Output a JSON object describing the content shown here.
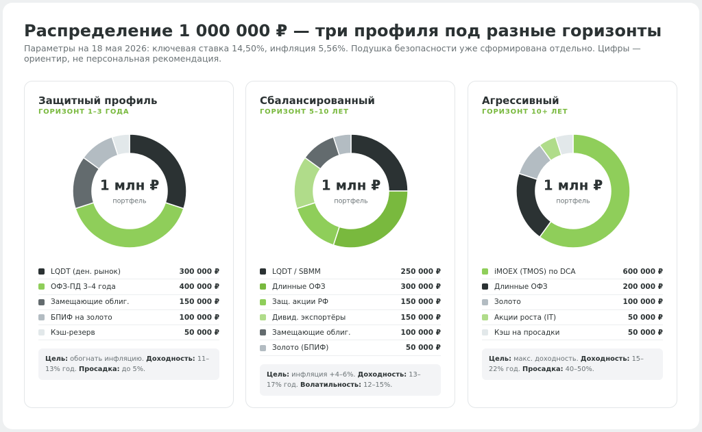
{
  "title": "Распределение 1 000 000 ₽ — три профиля под разные горизонты",
  "subtitle": "Параметры на 18 мая 2026: ключевая ставка 14,50%, инфляция 5,56%. Подушка безопасности уже сформирована отдельно. Цифры — ориентир, не персональная рекомендация.",
  "chart_data": [
    {
      "type": "donut",
      "title": "Защитный профиль",
      "subtitle": "ГОРИЗОНТ 1–3 ГОДА",
      "center_label": "1 млн ₽",
      "center_sublabel": "портфель",
      "categories": [
        "LQDT (ден. рынок)",
        "ОФЗ-ПД 3–4 года",
        "Замещающие облиг.",
        "БПИФ на золото",
        "Кэш-резерв"
      ],
      "values": [
        300000,
        400000,
        150000,
        100000,
        50000
      ],
      "value_labels": [
        "300 000 ₽",
        "400 000 ₽",
        "150 000 ₽",
        "100 000 ₽",
        "50 000 ₽"
      ],
      "colors": [
        "#2b3233",
        "#8fce5a",
        "#636b6e",
        "#b3bcc2",
        "#e2e8ea"
      ],
      "note": [
        {
          "label": "Цель:",
          "text": "обогнать инфляцию."
        },
        {
          "label": "Доходность:",
          "text": "11–13% год."
        },
        {
          "label": "Просадка:",
          "text": "до 5%."
        }
      ]
    },
    {
      "type": "donut",
      "title": "Сбалансированный",
      "subtitle": "ГОРИЗОНТ 5–10 ЛЕТ",
      "center_label": "1 млн ₽",
      "center_sublabel": "портфель",
      "categories": [
        "LQDT / SBMM",
        "Длинные ОФЗ",
        "Защ. акции РФ",
        "Дивид. экспортёры",
        "Замещающие облиг.",
        "Золото (БПИФ)"
      ],
      "values": [
        250000,
        300000,
        150000,
        150000,
        100000,
        50000
      ],
      "value_labels": [
        "250 000 ₽",
        "300 000 ₽",
        "150 000 ₽",
        "150 000 ₽",
        "100 000 ₽",
        "50 000 ₽"
      ],
      "colors": [
        "#2b3233",
        "#79b93e",
        "#8fce5a",
        "#b0dc8a",
        "#636b6e",
        "#b3bcc2"
      ],
      "note": [
        {
          "label": "Цель:",
          "text": "инфляция +4–6%."
        },
        {
          "label": "Доходность:",
          "text": "13–17% год."
        },
        {
          "label": "Волатильность:",
          "text": "12–15%."
        }
      ]
    },
    {
      "type": "donut",
      "title": "Агрессивный",
      "subtitle": "ГОРИЗОНТ 10+ ЛЕТ",
      "center_label": "1 млн ₽",
      "center_sublabel": "портфель",
      "categories": [
        "iMOEX (TMOS) по DCA",
        "Длинные ОФЗ",
        "Золото",
        "Акции роста (IT)",
        "Кэш на просадки"
      ],
      "values": [
        600000,
        200000,
        100000,
        50000,
        50000
      ],
      "value_labels": [
        "600 000 ₽",
        "200 000 ₽",
        "100 000 ₽",
        "50 000 ₽",
        "50 000 ₽"
      ],
      "colors": [
        "#8fce5a",
        "#2b3233",
        "#b3bcc2",
        "#b0dc8a",
        "#e2e8ea"
      ],
      "note": [
        {
          "label": "Цель:",
          "text": "макс. доходность."
        },
        {
          "label": "Доходность:",
          "text": "15–22% год."
        },
        {
          "label": "Просадка:",
          "text": "40–50%."
        }
      ]
    }
  ]
}
